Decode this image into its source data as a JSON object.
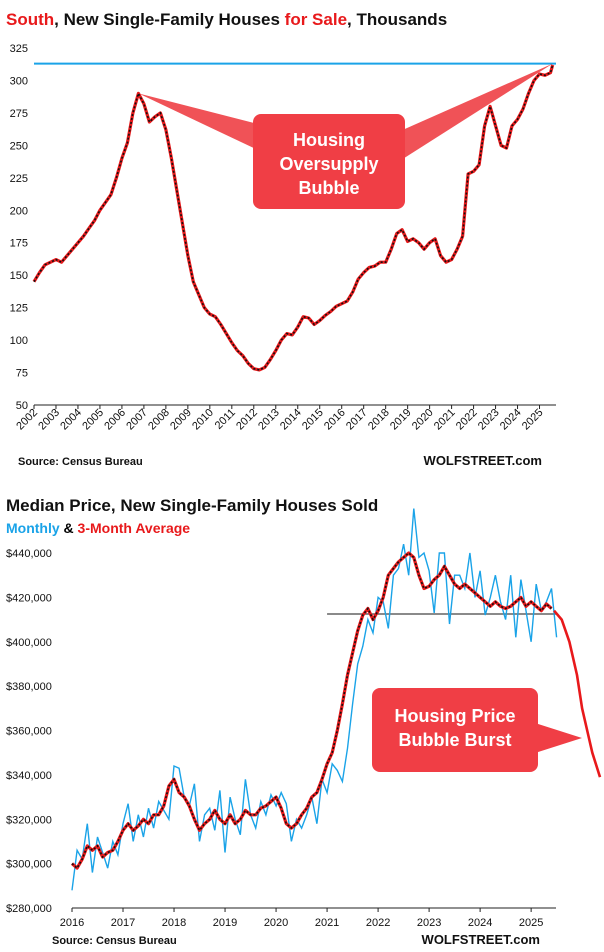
{
  "chart_data": [
    {
      "type": "line",
      "title_parts": [
        "South",
        ", New Single-Family Houses ",
        "for Sale",
        ", Thousands"
      ],
      "ylim": [
        50,
        325
      ],
      "yticks": [
        50,
        75,
        100,
        125,
        150,
        175,
        200,
        225,
        250,
        275,
        300,
        325
      ],
      "xticks": [
        "2002",
        "2003",
        "2004",
        "2005",
        "2006",
        "2007",
        "2008",
        "2009",
        "2010",
        "2011",
        "2012",
        "2013",
        "2014",
        "2015",
        "2016",
        "2017",
        "2018",
        "2019",
        "2020",
        "2021",
        "2022",
        "2023",
        "2024",
        "2025"
      ],
      "xlim": [
        2002,
        2025.75
      ],
      "reference_line": 313,
      "series": [
        {
          "x": [
            2002.0,
            2002.25,
            2002.5,
            2002.75,
            2003.0,
            2003.25,
            2003.5,
            2003.75,
            2004.0,
            2004.25,
            2004.5,
            2004.75,
            2005.0,
            2005.25,
            2005.5,
            2005.75,
            2006.0,
            2006.25,
            2006.5,
            2006.75,
            2007.0,
            2007.25,
            2007.5,
            2007.75,
            2008.0,
            2008.25,
            2008.5,
            2008.75,
            2009.0,
            2009.25,
            2009.5,
            2009.75,
            2010.0,
            2010.25,
            2010.5,
            2010.75,
            2011.0,
            2011.25,
            2011.5,
            2011.75,
            2012.0,
            2012.25,
            2012.5,
            2012.75,
            2013.0,
            2013.25,
            2013.5,
            2013.75,
            2014.0,
            2014.25,
            2014.5,
            2014.75,
            2015.0,
            2015.25,
            2015.5,
            2015.75,
            2016.0,
            2016.25,
            2016.5,
            2016.75,
            2017.0,
            2017.25,
            2017.5,
            2017.75,
            2018.0,
            2018.25,
            2018.5,
            2018.75,
            2019.0,
            2019.25,
            2019.5,
            2019.75,
            2020.0,
            2020.25,
            2020.5,
            2020.75,
            2021.0,
            2021.25,
            2021.5,
            2021.75,
            2022.0,
            2022.25,
            2022.5,
            2022.75,
            2023.0,
            2023.25,
            2023.5,
            2023.75,
            2024.0,
            2024.25,
            2024.5,
            2024.75,
            2025.0,
            2025.25,
            2025.5,
            2025.6
          ],
          "values": [
            145,
            152,
            158,
            160,
            162,
            160,
            165,
            170,
            175,
            180,
            186,
            192,
            200,
            206,
            212,
            225,
            240,
            252,
            275,
            290,
            282,
            268,
            272,
            275,
            262,
            240,
            215,
            190,
            165,
            145,
            135,
            125,
            120,
            118,
            112,
            105,
            98,
            92,
            88,
            82,
            78,
            77,
            79,
            85,
            92,
            100,
            105,
            104,
            110,
            118,
            117,
            112,
            115,
            119,
            122,
            126,
            128,
            130,
            137,
            147,
            152,
            156,
            157,
            160,
            160,
            170,
            182,
            185,
            176,
            178,
            175,
            170,
            175,
            178,
            165,
            160,
            162,
            170,
            180,
            228,
            230,
            235,
            265,
            280,
            265,
            250,
            248,
            265,
            270,
            278,
            290,
            300,
            305,
            304,
            306,
            312
          ]
        }
      ],
      "annotation": [
        "Housing",
        "Oversupply",
        "Bubble"
      ],
      "source": "Source: Census Bureau",
      "brand": "WOLFSTREET.com"
    },
    {
      "type": "line",
      "title": "Median Price, New Single-Family Houses Sold",
      "subtitle_parts": [
        "Monthly",
        " & ",
        "3-Month Average"
      ],
      "ylim": [
        280000,
        440000
      ],
      "yticks": [
        280000,
        300000,
        320000,
        340000,
        360000,
        380000,
        400000,
        420000,
        440000
      ],
      "ytick_labels": [
        "$280,000",
        "$300,000",
        "$320,000",
        "$340,000",
        "$360,000",
        "$380,000",
        "$400,000",
        "$420,000",
        "$440,000"
      ],
      "xticks": [
        "2016",
        "2017",
        "2018",
        "2019",
        "2020",
        "2021",
        "2022",
        "2023",
        "2024",
        "2025"
      ],
      "xlim": [
        2016,
        2026.35
      ],
      "reference_line": 412500,
      "series": [
        {
          "name": "Monthly",
          "color": "#1aa3e8",
          "x": [
            2016.0,
            2016.1,
            2016.2,
            2016.3,
            2016.4,
            2016.5,
            2016.6,
            2016.7,
            2016.8,
            2016.9,
            2017.0,
            2017.1,
            2017.2,
            2017.3,
            2017.4,
            2017.5,
            2017.6,
            2017.7,
            2017.8,
            2017.9,
            2018.0,
            2018.1,
            2018.2,
            2018.3,
            2018.4,
            2018.5,
            2018.6,
            2018.7,
            2018.8,
            2018.9,
            2019.0,
            2019.1,
            2019.2,
            2019.3,
            2019.4,
            2019.5,
            2019.6,
            2019.7,
            2019.8,
            2019.9,
            2020.0,
            2020.1,
            2020.2,
            2020.3,
            2020.4,
            2020.5,
            2020.6,
            2020.7,
            2020.8,
            2020.9,
            2021.0,
            2021.1,
            2021.2,
            2021.3,
            2021.4,
            2021.5,
            2021.6,
            2021.7,
            2021.8,
            2021.9,
            2022.0,
            2022.1,
            2022.2,
            2022.3,
            2022.4,
            2022.5,
            2022.6,
            2022.7,
            2022.8,
            2022.9,
            2023.0,
            2023.1,
            2023.2,
            2023.3,
            2023.4,
            2023.5,
            2023.6,
            2023.7,
            2023.8,
            2023.9,
            2024.0,
            2024.1,
            2024.2,
            2024.3,
            2024.4,
            2024.5,
            2024.6,
            2024.7,
            2024.8,
            2024.9,
            2025.0,
            2025.1,
            2025.2,
            2025.3,
            2025.4,
            2025.5
          ],
          "values": [
            288000,
            306000,
            302000,
            318000,
            296000,
            312000,
            305000,
            298000,
            310000,
            304000,
            318000,
            327000,
            310000,
            322000,
            312000,
            325000,
            316000,
            328000,
            324000,
            320000,
            344000,
            343000,
            330000,
            326000,
            336000,
            310000,
            322000,
            325000,
            315000,
            333000,
            305000,
            330000,
            320000,
            313000,
            338000,
            322000,
            316000,
            328000,
            322000,
            331000,
            326000,
            332000,
            327000,
            310000,
            320000,
            316000,
            322000,
            330000,
            318000,
            338000,
            332000,
            345000,
            342000,
            337000,
            352000,
            372000,
            390000,
            398000,
            410000,
            404000,
            420000,
            418000,
            406000,
            430000,
            433000,
            444000,
            430000,
            460000,
            438000,
            440000,
            432000,
            413000,
            440000,
            440000,
            408000,
            430000,
            430000,
            424000,
            440000,
            420000,
            432000,
            412000,
            420000,
            430000,
            418000,
            410000,
            430000,
            402000,
            428000,
            414000,
            400000,
            426000,
            414000,
            418000,
            424000,
            402000
          ]
        },
        {
          "name": "3-Month Average",
          "color": "#e8191b",
          "x": [
            2016.0,
            2016.1,
            2016.2,
            2016.3,
            2016.4,
            2016.5,
            2016.6,
            2016.7,
            2016.8,
            2016.9,
            2017.0,
            2017.1,
            2017.2,
            2017.3,
            2017.4,
            2017.5,
            2017.6,
            2017.7,
            2017.8,
            2017.9,
            2018.0,
            2018.1,
            2018.2,
            2018.3,
            2018.4,
            2018.5,
            2018.6,
            2018.7,
            2018.8,
            2018.9,
            2019.0,
            2019.1,
            2019.2,
            2019.3,
            2019.4,
            2019.5,
            2019.6,
            2019.7,
            2019.8,
            2019.9,
            2020.0,
            2020.1,
            2020.2,
            2020.3,
            2020.4,
            2020.5,
            2020.6,
            2020.7,
            2020.8,
            2020.9,
            2021.0,
            2021.1,
            2021.2,
            2021.3,
            2021.4,
            2021.5,
            2021.6,
            2021.7,
            2021.8,
            2021.9,
            2022.0,
            2022.1,
            2022.2,
            2022.3,
            2022.4,
            2022.5,
            2022.6,
            2022.7,
            2022.8,
            2022.9,
            2023.0,
            2023.1,
            2023.2,
            2023.3,
            2023.4,
            2023.5,
            2023.6,
            2023.7,
            2023.8,
            2023.9,
            2024.0,
            2024.1,
            2024.2,
            2024.3,
            2024.4,
            2024.5,
            2024.6,
            2024.7,
            2024.8,
            2024.9,
            2025.0,
            2025.1,
            2025.2,
            2025.3,
            2025.4
          ],
          "values": [
            300000,
            298000,
            302000,
            308000,
            306000,
            308000,
            303000,
            305000,
            306000,
            310000,
            315000,
            318000,
            315000,
            317000,
            320000,
            318000,
            322000,
            322000,
            326000,
            335000,
            338000,
            332000,
            330000,
            326000,
            320000,
            315000,
            318000,
            320000,
            324000,
            320000,
            318000,
            322000,
            318000,
            320000,
            324000,
            322000,
            322000,
            325000,
            326000,
            328000,
            330000,
            325000,
            318000,
            316000,
            318000,
            322000,
            325000,
            330000,
            332000,
            338000,
            345000,
            350000,
            360000,
            372000,
            385000,
            395000,
            405000,
            412000,
            415000,
            410000,
            414000,
            420000,
            430000,
            433000,
            436000,
            438000,
            440000,
            438000,
            430000,
            424000,
            425000,
            428000,
            430000,
            434000,
            430000,
            426000,
            424000,
            426000,
            424000,
            422000,
            420000,
            418000,
            416000,
            418000,
            416000,
            415000,
            416000,
            418000,
            420000,
            416000,
            418000,
            416000,
            414000,
            417000,
            415000
          ]
        },
        {
          "name": "Projection",
          "color": "#e8191b",
          "x": [
            2025.45,
            2025.6,
            2025.75,
            2025.9,
            2026.0,
            2026.1,
            2026.2,
            2026.35
          ],
          "values": [
            414000,
            410000,
            400000,
            385000,
            370000,
            360000,
            350000,
            339000
          ]
        }
      ],
      "annotation": [
        "Housing Price",
        "Bubble Burst"
      ],
      "source": "Source: Census Bureau",
      "brand": "WOLFSTREET.com"
    }
  ]
}
